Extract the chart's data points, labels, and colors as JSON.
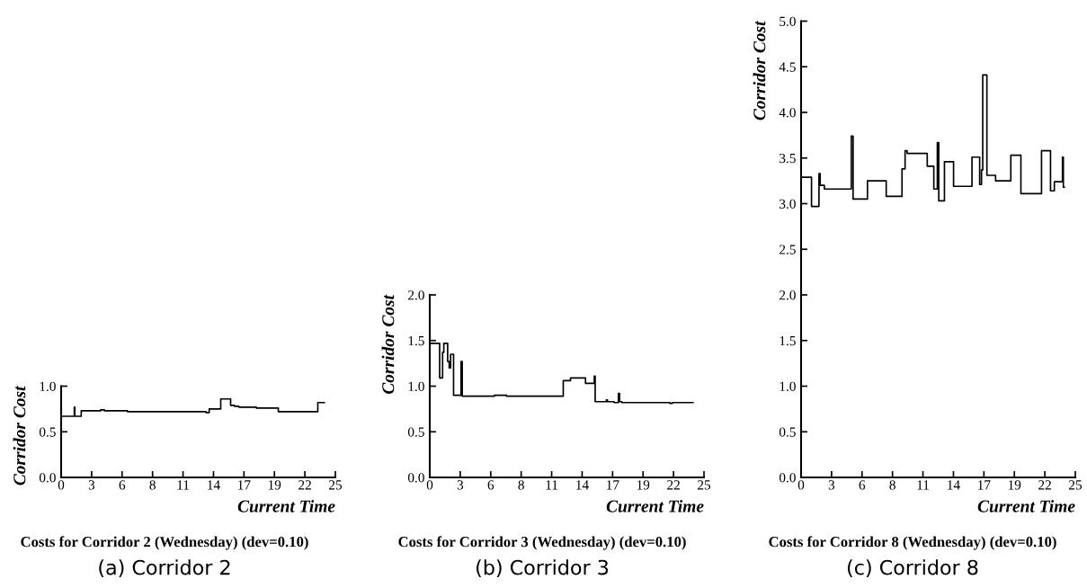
{
  "chart_data": [
    {
      "type": "step",
      "title": "Costs for Corridor 2 (Wednesday) (dev=0.10)",
      "xlabel": "Current Time",
      "ylabel": "Corridor Cost",
      "annotations": [
        "(a) Corridor 2"
      ],
      "series": [
        {
          "color": "#000000",
          "x": [
            0,
            1.2,
            1.25,
            1.83,
            3.6,
            3.95,
            6.05,
            13.2,
            13.5,
            14.55,
            15.45,
            15.8,
            16.2,
            17.8,
            19.8,
            23.4,
            24.0
          ],
          "values": [
            0.67,
            0.77,
            0.67,
            0.73,
            0.74,
            0.73,
            0.72,
            0.71,
            0.75,
            0.86,
            0.79,
            0.78,
            0.77,
            0.76,
            0.72,
            0.82,
            0.82
          ]
        }
      ],
      "xlim": [
        0,
        25
      ],
      "xticks": [
        0,
        {
          "value": 2.778,
          "label": "3"
        },
        {
          "value": 5.556,
          "label": "6"
        },
        {
          "value": 8.333,
          "label": "8"
        },
        {
          "value": 11.111,
          "label": "11"
        },
        {
          "value": 13.889,
          "label": "14"
        },
        {
          "value": 16.667,
          "label": "17"
        },
        {
          "value": 19.444,
          "label": "19"
        },
        {
          "value": 22.222,
          "label": "22"
        },
        25
      ],
      "ylim": [
        0,
        1.0
      ],
      "yticks": [
        {
          "value": 0,
          "label": "0.0"
        },
        0.5,
        {
          "value": 1.0,
          "label": "1.0"
        }
      ],
      "grid": false,
      "marker": "none",
      "line_style": "solid"
    },
    {
      "type": "step",
      "title": "Costs for Corridor 3 (Wednesday) (dev=0.10)",
      "xlabel": "Current Time",
      "ylabel": "Corridor Cost",
      "annotations": [
        "(b) Corridor 3"
      ],
      "series": [
        {
          "color": "#000000",
          "x": [
            0,
            0.9,
            1.17,
            1.28,
            1.63,
            1.77,
            1.9,
            2.17,
            2.85,
            2.96,
            5.9,
            7.0,
            12.17,
            12.83,
            14.2,
            15.0,
            15.08,
            16.1,
            16.2,
            16.8,
            17.2,
            17.3,
            17.5,
            21.9,
            22.1,
            24.0
          ],
          "values": [
            1.47,
            1.09,
            1.37,
            1.47,
            1.27,
            1.2,
            1.35,
            0.9,
            1.27,
            0.89,
            0.9,
            0.89,
            1.06,
            1.09,
            1.03,
            1.11,
            0.83,
            0.85,
            0.83,
            0.82,
            0.92,
            0.83,
            0.82,
            0.81,
            0.82,
            0.82
          ]
        }
      ],
      "xlim": [
        0,
        25
      ],
      "xticks": [
        0,
        {
          "value": 2.778,
          "label": "3"
        },
        {
          "value": 5.556,
          "label": "6"
        },
        {
          "value": 8.333,
          "label": "8"
        },
        {
          "value": 11.111,
          "label": "11"
        },
        {
          "value": 13.889,
          "label": "14"
        },
        {
          "value": 16.667,
          "label": "17"
        },
        {
          "value": 19.444,
          "label": "19"
        },
        {
          "value": 22.222,
          "label": "22"
        },
        25
      ],
      "ylim": [
        0,
        2.0
      ],
      "yticks": [
        {
          "value": 0,
          "label": "0.0"
        },
        0.5,
        {
          "value": 1.0,
          "label": "1.0"
        },
        1.5,
        {
          "value": 2.0,
          "label": "2.0"
        }
      ],
      "grid": false,
      "marker": "none",
      "line_style": "solid"
    },
    {
      "type": "step",
      "title": "Costs for Corridor 8 (Wednesday) (dev=0.10)",
      "xlabel": "Current Time",
      "ylabel": "Corridor Cost",
      "annotations": [
        "(c) Corridor 8"
      ],
      "series": [
        {
          "color": "#000000",
          "x": [
            0,
            0.95,
            1.63,
            1.74,
            2.12,
            4.58,
            4.74,
            6.05,
            7.76,
            9.2,
            9.48,
            9.67,
            11.5,
            12.1,
            12.42,
            12.55,
            13.07,
            13.9,
            15.58,
            16.28,
            16.45,
            16.56,
            16.94,
            17.73,
            19.12,
            20.04,
            21.92,
            22.74,
            23.09,
            23.83,
            23.91,
            24.0
          ],
          "values": [
            3.29,
            2.97,
            3.33,
            3.2,
            3.16,
            3.74,
            3.05,
            3.25,
            3.08,
            3.38,
            3.58,
            3.55,
            3.41,
            3.16,
            3.67,
            3.03,
            3.46,
            3.19,
            3.51,
            3.21,
            3.37,
            4.41,
            3.31,
            3.25,
            3.53,
            3.11,
            3.58,
            3.14,
            3.24,
            3.51,
            3.18,
            3.18
          ]
        }
      ],
      "xlim": [
        0,
        25
      ],
      "xticks": [
        0,
        {
          "value": 2.778,
          "label": "3"
        },
        {
          "value": 5.556,
          "label": "6"
        },
        {
          "value": 8.333,
          "label": "8"
        },
        {
          "value": 11.111,
          "label": "11"
        },
        {
          "value": 13.889,
          "label": "14"
        },
        {
          "value": 16.667,
          "label": "17"
        },
        {
          "value": 19.444,
          "label": "19"
        },
        {
          "value": 22.222,
          "label": "22"
        },
        25
      ],
      "ylim": [
        0,
        5.0
      ],
      "yticks": [
        {
          "value": 0,
          "label": "0.0"
        },
        0.5,
        {
          "value": 1.0,
          "label": "1.0"
        },
        1.5,
        {
          "value": 2.0,
          "label": "2.0"
        },
        2.5,
        {
          "value": 3.0,
          "label": "3.0"
        },
        3.5,
        {
          "value": 4.0,
          "label": "4.0"
        },
        4.5,
        {
          "value": 5.0,
          "label": "5.0"
        }
      ],
      "grid": false,
      "marker": "none",
      "line_style": "solid"
    }
  ]
}
